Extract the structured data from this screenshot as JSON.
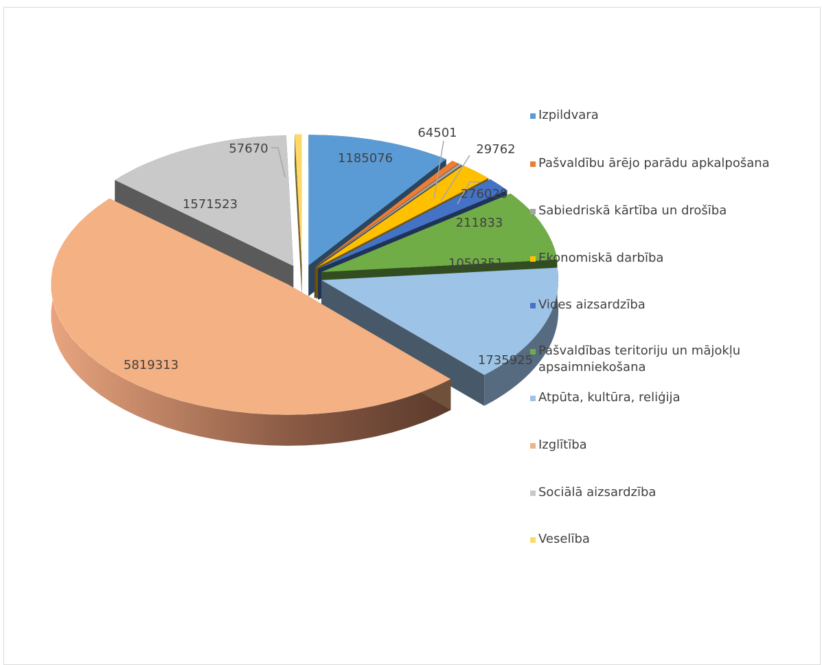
{
  "chart_data": {
    "type": "pie",
    "title": "",
    "style": "3d-exploded",
    "legend_position": "right",
    "categories": [
      "Izpildvara",
      "Pašvaldību ārējo parādu apkalpošana",
      "Sabiedriskā kārtība un drošība",
      "Ekonomiskā darbība",
      "Vides aizsardzība",
      "Pašvaldības teritoriju un mājokļu apsaimniekošana",
      "Atpūta, kultūra, reliģija",
      "Izglītība",
      "Sociālā aizsardzība",
      "Veselība"
    ],
    "values": [
      1185076,
      64501,
      29762,
      276020,
      211833,
      1050351,
      1735925,
      5819313,
      1571523,
      57670
    ],
    "labels": [
      "1185076",
      "64501",
      "29762",
      "276020",
      "211833",
      "1050351",
      "1735925",
      "5819313",
      "1571523",
      "57670"
    ],
    "colors": [
      "#5b9bd5",
      "#ed7d31",
      "#a5a5a5",
      "#ffc000",
      "#4472c4",
      "#70ad47",
      "#9dc3e6",
      "#f4b183",
      "#c9c9c9",
      "#ffd966"
    ]
  }
}
